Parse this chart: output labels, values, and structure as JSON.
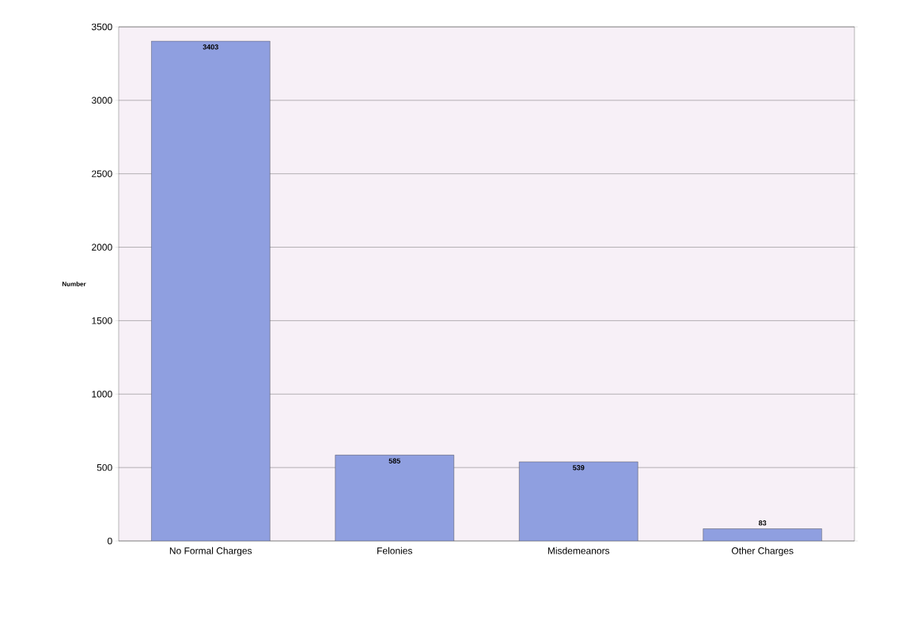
{
  "chart_data": {
    "type": "bar",
    "ylabel": "Number",
    "categories": [
      "No Formal Charges",
      "Felonies",
      "Misdemeanors",
      "Other Charges"
    ],
    "values": [
      3403,
      585,
      539,
      83
    ],
    "color": "#8f9fe0",
    "ylim": [
      0,
      3500
    ],
    "yticks": [
      0,
      500,
      1000,
      1500,
      2000,
      2500,
      3000,
      3500
    ],
    "grid": "y",
    "data_labels": true
  }
}
